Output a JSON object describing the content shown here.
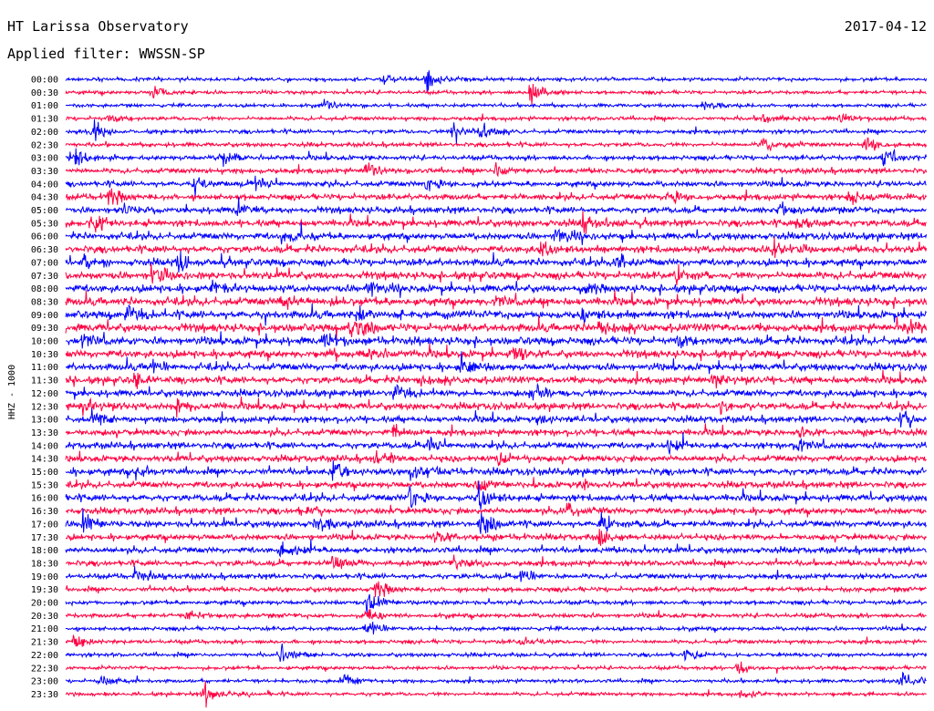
{
  "header": {
    "station": "HT Larissa Observatory",
    "date": "2017-04-12",
    "filter_label": "Applied filter: WWSSN-SP"
  },
  "chart_data": {
    "type": "line",
    "title": "HT Larissa Observatory",
    "subtitle": "Applied filter: WWSSN-SP",
    "date": "2017-04-12",
    "ylabel": "HHZ - 1000",
    "xlabel": "",
    "grid": false,
    "legend": "none",
    "colors": [
      "#0000ff",
      "#ff0040"
    ],
    "traces": [
      {
        "label": "00:00",
        "color": "#0000ff",
        "activity": 0.15,
        "events": [
          [
            0.42,
            1.0
          ],
          [
            0.37,
            0.35
          ]
        ]
      },
      {
        "label": "00:30",
        "color": "#ff0040",
        "activity": 0.15,
        "events": [
          [
            0.1,
            0.6
          ],
          [
            0.54,
            1.0
          ]
        ]
      },
      {
        "label": "01:00",
        "color": "#0000ff",
        "activity": 0.14,
        "events": [
          [
            0.3,
            0.4
          ],
          [
            0.74,
            0.5
          ]
        ]
      },
      {
        "label": "01:30",
        "color": "#ff0040",
        "activity": 0.18,
        "events": [
          [
            0.05,
            0.4
          ],
          [
            0.81,
            0.5
          ],
          [
            0.9,
            0.4
          ]
        ]
      },
      {
        "label": "02:00",
        "color": "#0000ff",
        "activity": 0.2,
        "events": [
          [
            0.03,
            0.9
          ],
          [
            0.45,
            1.0
          ],
          [
            0.48,
            0.8
          ]
        ]
      },
      {
        "label": "02:30",
        "color": "#ff0040",
        "activity": 0.22,
        "events": [
          [
            0.81,
            0.6
          ],
          [
            0.93,
            0.8
          ]
        ]
      },
      {
        "label": "03:00",
        "color": "#0000ff",
        "activity": 0.3,
        "events": [
          [
            0.01,
            0.8
          ],
          [
            0.18,
            0.6
          ],
          [
            0.95,
            1.0
          ]
        ]
      },
      {
        "label": "03:30",
        "color": "#ff0040",
        "activity": 0.35,
        "events": [
          [
            0.35,
            0.6
          ],
          [
            0.5,
            0.5
          ]
        ]
      },
      {
        "label": "04:00",
        "color": "#0000ff",
        "activity": 0.4,
        "events": [
          [
            0.15,
            0.5
          ],
          [
            0.22,
            0.5
          ],
          [
            0.42,
            0.6
          ]
        ]
      },
      {
        "label": "04:30",
        "color": "#ff0040",
        "activity": 0.45,
        "events": [
          [
            0.05,
            0.8
          ],
          [
            0.7,
            0.7
          ],
          [
            0.91,
            0.9
          ]
        ]
      },
      {
        "label": "05:00",
        "color": "#0000ff",
        "activity": 0.5,
        "events": [
          [
            0.06,
            0.6
          ],
          [
            0.2,
            0.6
          ],
          [
            0.83,
            0.5
          ]
        ]
      },
      {
        "label": "05:30",
        "color": "#ff0040",
        "activity": 0.55,
        "events": [
          [
            0.03,
            0.7
          ],
          [
            0.6,
            0.7
          ],
          [
            0.85,
            0.8
          ]
        ]
      },
      {
        "label": "06:00",
        "color": "#0000ff",
        "activity": 0.55,
        "events": [
          [
            0.25,
            0.6
          ],
          [
            0.57,
            0.7
          ]
        ]
      },
      {
        "label": "06:30",
        "color": "#ff0040",
        "activity": 0.6,
        "events": [
          [
            0.55,
            0.6
          ],
          [
            0.82,
            0.8
          ]
        ]
      },
      {
        "label": "07:00",
        "color": "#0000ff",
        "activity": 0.6,
        "events": [
          [
            0.02,
            0.6
          ],
          [
            0.13,
            0.6
          ],
          [
            0.64,
            0.5
          ]
        ]
      },
      {
        "label": "07:30",
        "color": "#ff0040",
        "activity": 0.65,
        "events": [
          [
            0.1,
            0.7
          ],
          [
            0.71,
            0.6
          ]
        ]
      },
      {
        "label": "08:00",
        "color": "#0000ff",
        "activity": 0.65,
        "events": [
          [
            0.17,
            0.6
          ],
          [
            0.35,
            0.6
          ],
          [
            0.6,
            0.6
          ]
        ]
      },
      {
        "label": "08:30",
        "color": "#ff0040",
        "activity": 0.7,
        "events": [
          [
            0.25,
            0.6
          ],
          [
            0.5,
            0.5
          ]
        ]
      },
      {
        "label": "09:00",
        "color": "#0000ff",
        "activity": 0.7,
        "events": [
          [
            0.07,
            0.6
          ],
          [
            0.34,
            0.7
          ],
          [
            0.6,
            0.6
          ]
        ]
      },
      {
        "label": "09:30",
        "color": "#ff0040",
        "activity": 0.75,
        "events": [
          [
            0.33,
            1.0
          ],
          [
            0.62,
            0.9
          ],
          [
            0.98,
            0.7
          ]
        ]
      },
      {
        "label": "10:00",
        "color": "#0000ff",
        "activity": 0.7,
        "events": [
          [
            0.02,
            0.7
          ],
          [
            0.3,
            0.6
          ],
          [
            0.71,
            0.6
          ]
        ]
      },
      {
        "label": "10:30",
        "color": "#ff0040",
        "activity": 0.65,
        "events": [
          [
            0.35,
            0.7
          ],
          [
            0.52,
            0.6
          ]
        ]
      },
      {
        "label": "11:00",
        "color": "#0000ff",
        "activity": 0.6,
        "events": [
          [
            0.1,
            0.5
          ],
          [
            0.46,
            0.6
          ]
        ]
      },
      {
        "label": "11:30",
        "color": "#ff0040",
        "activity": 0.6,
        "events": [
          [
            0.08,
            0.6
          ],
          [
            0.41,
            0.6
          ],
          [
            0.75,
            0.5
          ]
        ]
      },
      {
        "label": "12:00",
        "color": "#0000ff",
        "activity": 0.55,
        "events": [
          [
            0.38,
            0.6
          ],
          [
            0.54,
            0.5
          ]
        ]
      },
      {
        "label": "12:30",
        "color": "#ff0040",
        "activity": 0.55,
        "events": [
          [
            0.02,
            0.6
          ],
          [
            0.13,
            0.6
          ],
          [
            0.76,
            0.5
          ]
        ]
      },
      {
        "label": "13:00",
        "color": "#0000ff",
        "activity": 0.5,
        "events": [
          [
            0.03,
            0.6
          ],
          [
            0.55,
            0.5
          ],
          [
            0.97,
            0.6
          ]
        ]
      },
      {
        "label": "13:30",
        "color": "#ff0040",
        "activity": 0.5,
        "events": [
          [
            0.38,
            0.5
          ],
          [
            0.85,
            0.5
          ]
        ]
      },
      {
        "label": "14:00",
        "color": "#0000ff",
        "activity": 0.5,
        "events": [
          [
            0.42,
            0.6
          ],
          [
            0.7,
            0.5
          ],
          [
            0.85,
            0.7
          ]
        ]
      },
      {
        "label": "14:30",
        "color": "#ff0040",
        "activity": 0.5,
        "events": [
          [
            0.36,
            0.5
          ],
          [
            0.5,
            0.6
          ]
        ]
      },
      {
        "label": "15:00",
        "color": "#0000ff",
        "activity": 0.55,
        "events": [
          [
            0.08,
            0.6
          ],
          [
            0.31,
            0.9
          ],
          [
            0.4,
            0.8
          ]
        ]
      },
      {
        "label": "15:30",
        "color": "#ff0040",
        "activity": 0.5,
        "events": [
          [
            0.48,
            0.8
          ],
          [
            0.6,
            0.5
          ]
        ]
      },
      {
        "label": "16:00",
        "color": "#0000ff",
        "activity": 0.55,
        "events": [
          [
            0.4,
            0.8
          ],
          [
            0.48,
            1.0
          ]
        ]
      },
      {
        "label": "16:30",
        "color": "#ff0040",
        "activity": 0.5,
        "events": [
          [
            0.27,
            0.5
          ],
          [
            0.58,
            0.5
          ]
        ]
      },
      {
        "label": "17:00",
        "color": "#0000ff",
        "activity": 0.5,
        "events": [
          [
            0.02,
            0.9
          ],
          [
            0.29,
            0.8
          ],
          [
            0.48,
            0.9
          ],
          [
            0.62,
            0.9
          ]
        ]
      },
      {
        "label": "17:30",
        "color": "#ff0040",
        "activity": 0.45,
        "events": [
          [
            0.43,
            0.7
          ],
          [
            0.62,
            0.7
          ]
        ]
      },
      {
        "label": "18:00",
        "color": "#0000ff",
        "activity": 0.45,
        "events": [
          [
            0.25,
            0.7
          ]
        ]
      },
      {
        "label": "18:30",
        "color": "#ff0040",
        "activity": 0.4,
        "events": [
          [
            0.31,
            0.6
          ],
          [
            0.45,
            0.6
          ]
        ]
      },
      {
        "label": "19:00",
        "color": "#0000ff",
        "activity": 0.35,
        "events": [
          [
            0.08,
            0.5
          ],
          [
            0.53,
            0.6
          ]
        ]
      },
      {
        "label": "19:30",
        "color": "#ff0040",
        "activity": 0.3,
        "events": [
          [
            0.36,
            0.8
          ]
        ]
      },
      {
        "label": "20:00",
        "color": "#0000ff",
        "activity": 0.25,
        "events": [
          [
            0.35,
            1.0
          ]
        ]
      },
      {
        "label": "20:30",
        "color": "#ff0040",
        "activity": 0.25,
        "events": [
          [
            0.35,
            0.8
          ],
          [
            0.14,
            0.4
          ]
        ]
      },
      {
        "label": "21:00",
        "color": "#0000ff",
        "activity": 0.2,
        "events": [
          [
            0.35,
            0.8
          ]
        ]
      },
      {
        "label": "21:30",
        "color": "#ff0040",
        "activity": 0.2,
        "events": [
          [
            0.01,
            0.5
          ],
          [
            0.53,
            0.4
          ]
        ]
      },
      {
        "label": "22:00",
        "color": "#0000ff",
        "activity": 0.18,
        "events": [
          [
            0.25,
            0.7
          ],
          [
            0.72,
            0.5
          ]
        ]
      },
      {
        "label": "22:30",
        "color": "#ff0040",
        "activity": 0.15,
        "events": [
          [
            0.78,
            0.4
          ]
        ]
      },
      {
        "label": "23:00",
        "color": "#0000ff",
        "activity": 0.15,
        "events": [
          [
            0.04,
            0.6
          ],
          [
            0.32,
            0.6
          ],
          [
            0.97,
            0.8
          ]
        ]
      },
      {
        "label": "23:30",
        "color": "#ff0040",
        "activity": 0.15,
        "events": [
          [
            0.16,
            0.9
          ],
          [
            0.78,
            0.4
          ]
        ]
      }
    ]
  }
}
